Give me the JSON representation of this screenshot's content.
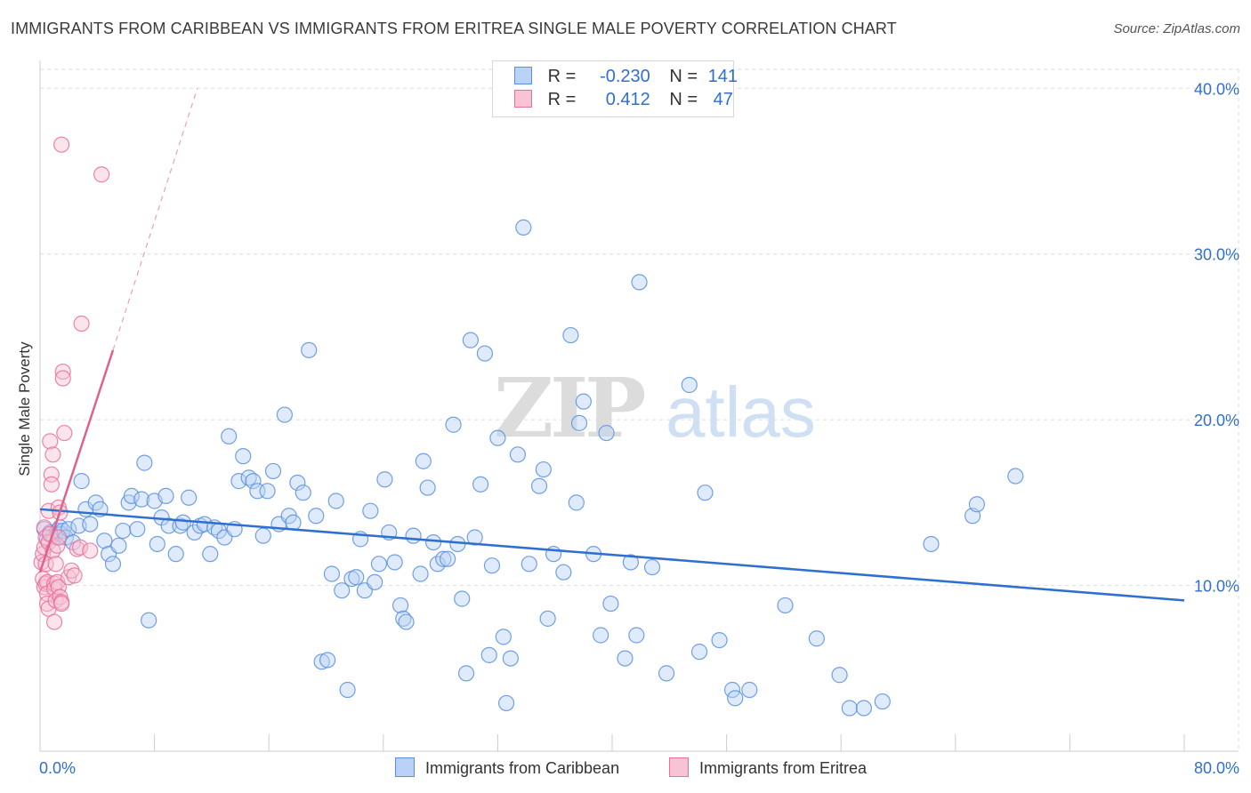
{
  "title": "IMMIGRANTS FROM CARIBBEAN VS IMMIGRANTS FROM ERITREA SINGLE MALE POVERTY CORRELATION CHART",
  "source": "Source: ZipAtlas.com",
  "watermark": {
    "zip": "ZIP",
    "atlas": "atlas"
  },
  "legend": {
    "rows": [
      {
        "r_label": "R =",
        "r_value": "-0.230",
        "n_label": "N =",
        "n_value": "141"
      },
      {
        "r_label": "R =",
        "r_value": "0.412",
        "n_label": "N =",
        "n_value": "47"
      }
    ]
  },
  "colors": {
    "caribbean": "#5b8fe0",
    "caribbean_fill": "#b9d2f5",
    "eritrea": "#e8709a",
    "eritrea_fill": "#f7c3d5",
    "axis_label": "#2f6fd0",
    "grid": "#dddddd"
  },
  "chart_data": {
    "type": "scatter",
    "title": "IMMIGRANTS FROM CARIBBEAN VS IMMIGRANTS FROM ERITREA SINGLE MALE POVERTY CORRELATION CHART",
    "xlabel": "",
    "ylabel": "Single Male Poverty",
    "xlim": [
      0,
      80
    ],
    "ylim": [
      0,
      42
    ],
    "x_tick_labels": [
      "0.0%",
      "80.0%"
    ],
    "y_ticks": [
      10,
      20,
      30,
      40
    ],
    "y_tick_labels": [
      "10.0%",
      "20.0%",
      "30.0%",
      "40.0%"
    ],
    "grid": true,
    "legend_position": "top-center",
    "series": [
      {
        "name": "Immigrants from Caribbean",
        "trend": {
          "x0": 0,
          "y0": 14.6,
          "x1": 80,
          "y1": 9.1
        },
        "points": [
          [
            0.3,
            13.4
          ],
          [
            0.5,
            12.8
          ],
          [
            0.7,
            13.2
          ],
          [
            0.9,
            13.0
          ],
          [
            1.0,
            12.9
          ],
          [
            1.2,
            13.3
          ],
          [
            1.4,
            13.5
          ],
          [
            1.5,
            13.1
          ],
          [
            1.6,
            13.3
          ],
          [
            1.8,
            12.9
          ],
          [
            2.0,
            13.4
          ],
          [
            2.3,
            12.6
          ],
          [
            2.7,
            13.6
          ],
          [
            2.9,
            16.3
          ],
          [
            3.2,
            14.6
          ],
          [
            3.5,
            13.7
          ],
          [
            3.9,
            15.0
          ],
          [
            4.2,
            14.6
          ],
          [
            4.5,
            12.7
          ],
          [
            4.8,
            11.9
          ],
          [
            5.1,
            11.3
          ],
          [
            5.5,
            12.4
          ],
          [
            5.8,
            13.3
          ],
          [
            6.2,
            15.0
          ],
          [
            6.4,
            15.4
          ],
          [
            6.8,
            13.4
          ],
          [
            7.1,
            15.2
          ],
          [
            7.3,
            17.4
          ],
          [
            7.6,
            7.9
          ],
          [
            8.0,
            15.1
          ],
          [
            8.2,
            12.5
          ],
          [
            8.5,
            14.1
          ],
          [
            8.8,
            15.4
          ],
          [
            9.0,
            13.6
          ],
          [
            9.5,
            11.9
          ],
          [
            9.8,
            13.6
          ],
          [
            10.0,
            13.8
          ],
          [
            10.4,
            15.3
          ],
          [
            10.8,
            13.2
          ],
          [
            11.2,
            13.6
          ],
          [
            11.5,
            13.7
          ],
          [
            11.9,
            11.9
          ],
          [
            12.2,
            13.5
          ],
          [
            12.5,
            13.3
          ],
          [
            12.9,
            12.9
          ],
          [
            13.2,
            19.0
          ],
          [
            13.6,
            13.4
          ],
          [
            13.9,
            16.3
          ],
          [
            14.2,
            17.8
          ],
          [
            14.6,
            16.5
          ],
          [
            14.9,
            16.3
          ],
          [
            15.2,
            15.7
          ],
          [
            15.6,
            13.0
          ],
          [
            15.9,
            15.7
          ],
          [
            16.3,
            16.9
          ],
          [
            16.7,
            13.7
          ],
          [
            17.1,
            20.3
          ],
          [
            17.4,
            14.2
          ],
          [
            17.7,
            13.8
          ],
          [
            18.0,
            16.2
          ],
          [
            18.4,
            15.6
          ],
          [
            18.8,
            24.2
          ],
          [
            19.3,
            14.2
          ],
          [
            19.7,
            5.4
          ],
          [
            20.1,
            5.5
          ],
          [
            20.4,
            10.7
          ],
          [
            20.7,
            15.1
          ],
          [
            21.1,
            9.7
          ],
          [
            21.5,
            3.7
          ],
          [
            21.8,
            10.4
          ],
          [
            22.1,
            10.5
          ],
          [
            22.4,
            12.8
          ],
          [
            22.7,
            9.7
          ],
          [
            23.1,
            14.5
          ],
          [
            23.4,
            10.2
          ],
          [
            23.7,
            11.3
          ],
          [
            24.1,
            16.4
          ],
          [
            24.4,
            13.2
          ],
          [
            24.8,
            11.4
          ],
          [
            25.2,
            8.8
          ],
          [
            25.4,
            8.0
          ],
          [
            25.6,
            7.8
          ],
          [
            26.1,
            13.0
          ],
          [
            26.6,
            10.7
          ],
          [
            26.8,
            17.5
          ],
          [
            27.1,
            15.9
          ],
          [
            27.5,
            12.6
          ],
          [
            27.8,
            11.3
          ],
          [
            28.2,
            11.6
          ],
          [
            28.5,
            11.6
          ],
          [
            28.9,
            19.7
          ],
          [
            29.2,
            12.5
          ],
          [
            29.5,
            9.2
          ],
          [
            29.8,
            4.7
          ],
          [
            30.1,
            24.8
          ],
          [
            30.4,
            12.9
          ],
          [
            30.8,
            16.1
          ],
          [
            31.1,
            24.0
          ],
          [
            31.4,
            5.8
          ],
          [
            31.6,
            11.2
          ],
          [
            32.0,
            18.9
          ],
          [
            32.4,
            6.9
          ],
          [
            32.6,
            2.9
          ],
          [
            32.9,
            5.6
          ],
          [
            33.4,
            17.9
          ],
          [
            33.8,
            31.6
          ],
          [
            34.2,
            11.3
          ],
          [
            34.9,
            16.0
          ],
          [
            35.2,
            17.0
          ],
          [
            35.5,
            8.0
          ],
          [
            35.9,
            11.9
          ],
          [
            36.6,
            10.8
          ],
          [
            37.1,
            25.1
          ],
          [
            37.5,
            15.0
          ],
          [
            37.7,
            19.8
          ],
          [
            38.0,
            21.1
          ],
          [
            38.7,
            11.9
          ],
          [
            39.2,
            7.0
          ],
          [
            39.6,
            19.2
          ],
          [
            39.9,
            8.9
          ],
          [
            40.9,
            5.6
          ],
          [
            41.3,
            11.4
          ],
          [
            41.7,
            7.0
          ],
          [
            41.9,
            28.3
          ],
          [
            42.8,
            11.1
          ],
          [
            43.8,
            4.7
          ],
          [
            45.4,
            22.1
          ],
          [
            46.1,
            6.0
          ],
          [
            46.5,
            15.6
          ],
          [
            47.5,
            6.7
          ],
          [
            48.4,
            3.7
          ],
          [
            48.6,
            3.2
          ],
          [
            49.6,
            3.7
          ],
          [
            52.1,
            8.8
          ],
          [
            54.3,
            6.8
          ],
          [
            55.9,
            4.6
          ],
          [
            56.6,
            2.6
          ],
          [
            57.6,
            2.6
          ],
          [
            58.9,
            3.0
          ],
          [
            62.3,
            12.5
          ],
          [
            65.2,
            14.2
          ],
          [
            65.5,
            14.9
          ],
          [
            68.2,
            16.6
          ]
        ]
      },
      {
        "name": "Immigrants from Eritrea",
        "trend": {
          "x0": 0,
          "y0": 10.8,
          "x1": 5.1,
          "y1": 24.2,
          "dash_to": {
            "x": 11.0,
            "y": 40.0
          }
        },
        "points": [
          [
            0.1,
            11.4
          ],
          [
            0.2,
            11.9
          ],
          [
            0.2,
            10.4
          ],
          [
            0.3,
            12.3
          ],
          [
            0.3,
            13.5
          ],
          [
            0.3,
            9.9
          ],
          [
            0.4,
            10.1
          ],
          [
            0.4,
            11.3
          ],
          [
            0.4,
            12.9
          ],
          [
            0.5,
            10.2
          ],
          [
            0.5,
            9.5
          ],
          [
            0.5,
            8.9
          ],
          [
            0.6,
            8.6
          ],
          [
            0.6,
            14.5
          ],
          [
            0.6,
            12.6
          ],
          [
            0.7,
            18.7
          ],
          [
            0.7,
            13.1
          ],
          [
            0.8,
            16.7
          ],
          [
            0.8,
            16.1
          ],
          [
            0.9,
            17.9
          ],
          [
            0.9,
            12.1
          ],
          [
            1.0,
            10.1
          ],
          [
            1.0,
            9.8
          ],
          [
            1.0,
            7.8
          ],
          [
            1.1,
            11.3
          ],
          [
            1.1,
            9.1
          ],
          [
            1.2,
            10.2
          ],
          [
            1.2,
            12.4
          ],
          [
            1.3,
            9.9
          ],
          [
            1.3,
            14.7
          ],
          [
            1.3,
            12.9
          ],
          [
            1.4,
            14.4
          ],
          [
            1.4,
            9.3
          ],
          [
            1.5,
            9.0
          ],
          [
            1.5,
            8.9
          ],
          [
            1.5,
            36.6
          ],
          [
            1.6,
            22.9
          ],
          [
            1.6,
            22.5
          ],
          [
            1.7,
            19.2
          ],
          [
            2.0,
            10.5
          ],
          [
            2.2,
            10.9
          ],
          [
            2.4,
            10.6
          ],
          [
            2.6,
            12.2
          ],
          [
            2.8,
            12.3
          ],
          [
            2.9,
            25.8
          ],
          [
            3.5,
            12.1
          ],
          [
            4.3,
            34.8
          ]
        ]
      }
    ]
  },
  "axes": {
    "ylabel": "Single Male Poverty",
    "x_min_label": "0.0%",
    "x_max_label": "80.0%"
  }
}
